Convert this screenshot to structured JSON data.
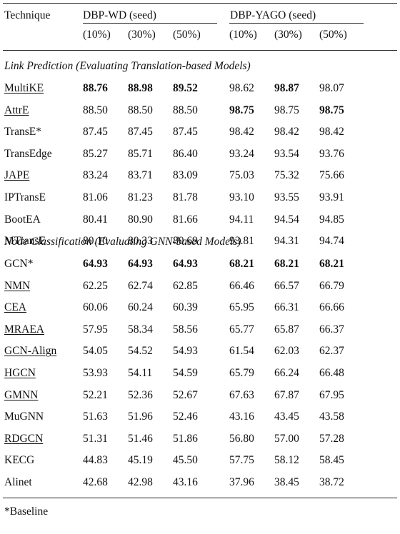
{
  "header": {
    "technique_label": "Technique",
    "group1_label": "DBP-WD (seed)",
    "group2_label": "DBP-YAGO (seed)",
    "percents": [
      "(10%)",
      "(30%)",
      "(50%)",
      "(10%)",
      "(30%)",
      "(50%)"
    ]
  },
  "sections": [
    {
      "title": "Link Prediction (Evaluating Translation-based Models)",
      "rows": [
        {
          "name": "MultiKE",
          "underline": true,
          "values": [
            "88.76",
            "88.98",
            "89.52",
            "98.62",
            "98.87",
            "98.07"
          ],
          "bold": [
            true,
            true,
            true,
            false,
            true,
            false
          ]
        },
        {
          "name": "AttrE",
          "underline": true,
          "values": [
            "88.50",
            "88.50",
            "88.50",
            "98.75",
            "98.75",
            "98.75"
          ],
          "bold": [
            false,
            false,
            false,
            true,
            false,
            true
          ]
        },
        {
          "name": "TransE*",
          "underline": false,
          "values": [
            "87.45",
            "87.45",
            "87.45",
            "98.42",
            "98.42",
            "98.42"
          ],
          "bold": [
            false,
            false,
            false,
            false,
            false,
            false
          ]
        },
        {
          "name": "TransEdge",
          "underline": false,
          "values": [
            "85.27",
            "85.71",
            "86.40",
            "93.24",
            "93.54",
            "93.76"
          ],
          "bold": [
            false,
            false,
            false,
            false,
            false,
            false
          ]
        },
        {
          "name": "JAPE",
          "underline": true,
          "values": [
            "83.24",
            "83.71",
            "83.09",
            "75.03",
            "75.32",
            "75.66"
          ],
          "bold": [
            false,
            false,
            false,
            false,
            false,
            false
          ]
        },
        {
          "name": "IPTransE",
          "underline": false,
          "values": [
            "81.06",
            "81.23",
            "81.78",
            "93.10",
            "93.55",
            "93.91"
          ],
          "bold": [
            false,
            false,
            false,
            false,
            false,
            false
          ]
        },
        {
          "name": "BootEA",
          "underline": false,
          "values": [
            "80.41",
            "80.90",
            "81.66",
            "94.11",
            "94.54",
            "94.85"
          ],
          "bold": [
            false,
            false,
            false,
            false,
            false,
            false
          ]
        },
        {
          "name": "MTransE",
          "underline": false,
          "values": [
            "80.10",
            "80.33",
            "80.69",
            "93.81",
            "94.31",
            "94.74"
          ],
          "bold": [
            false,
            false,
            false,
            false,
            false,
            false
          ]
        }
      ]
    },
    {
      "title": "Node Classification (Evaluating GNN-based Models)",
      "rows": [
        {
          "name": "GCN*",
          "underline": false,
          "values": [
            "64.93",
            "64.93",
            "64.93",
            "68.21",
            "68.21",
            "68.21"
          ],
          "bold": [
            true,
            true,
            true,
            true,
            true,
            true
          ]
        },
        {
          "name": "NMN",
          "underline": true,
          "values": [
            "62.25",
            "62.74",
            "62.85",
            "66.46",
            "66.57",
            "66.79"
          ],
          "bold": [
            false,
            false,
            false,
            false,
            false,
            false
          ]
        },
        {
          "name": "CEA",
          "underline": true,
          "values": [
            "60.06",
            "60.24",
            "60.39",
            "65.95",
            "66.31",
            "66.66"
          ],
          "bold": [
            false,
            false,
            false,
            false,
            false,
            false
          ]
        },
        {
          "name": "MRAEA",
          "underline": true,
          "values": [
            "57.95",
            "58.34",
            "58.56",
            "65.77",
            "65.87",
            "66.37"
          ],
          "bold": [
            false,
            false,
            false,
            false,
            false,
            false
          ]
        },
        {
          "name": "GCN-Align",
          "underline": true,
          "values": [
            "54.05",
            "54.52",
            "54.93",
            "61.54",
            "62.03",
            "62.37"
          ],
          "bold": [
            false,
            false,
            false,
            false,
            false,
            false
          ]
        },
        {
          "name": "HGCN",
          "underline": true,
          "values": [
            "53.93",
            "54.11",
            "54.59",
            "65.79",
            "66.24",
            "66.48"
          ],
          "bold": [
            false,
            false,
            false,
            false,
            false,
            false
          ]
        },
        {
          "name": "GMNN",
          "underline": true,
          "values": [
            "52.21",
            "52.36",
            "52.67",
            "67.63",
            "67.87",
            "67.95"
          ],
          "bold": [
            false,
            false,
            false,
            false,
            false,
            false
          ]
        },
        {
          "name": "MuGNN",
          "underline": false,
          "values": [
            "51.63",
            "51.96",
            "52.46",
            "43.16",
            "43.45",
            "43.58"
          ],
          "bold": [
            false,
            false,
            false,
            false,
            false,
            false
          ]
        },
        {
          "name": "RDGCN",
          "underline": true,
          "values": [
            "51.31",
            "51.46",
            "51.86",
            "56.80",
            "57.00",
            "57.28"
          ],
          "bold": [
            false,
            false,
            false,
            false,
            false,
            false
          ]
        },
        {
          "name": "KECG",
          "underline": false,
          "values": [
            "44.83",
            "45.19",
            "45.50",
            "57.75",
            "58.12",
            "58.45"
          ],
          "bold": [
            false,
            false,
            false,
            false,
            false,
            false
          ]
        },
        {
          "name": "Alinet",
          "underline": false,
          "values": [
            "42.68",
            "42.98",
            "43.16",
            "37.96",
            "38.45",
            "38.72"
          ],
          "bold": [
            false,
            false,
            false,
            false,
            false,
            false
          ]
        }
      ]
    }
  ],
  "footnote": "*Baseline"
}
